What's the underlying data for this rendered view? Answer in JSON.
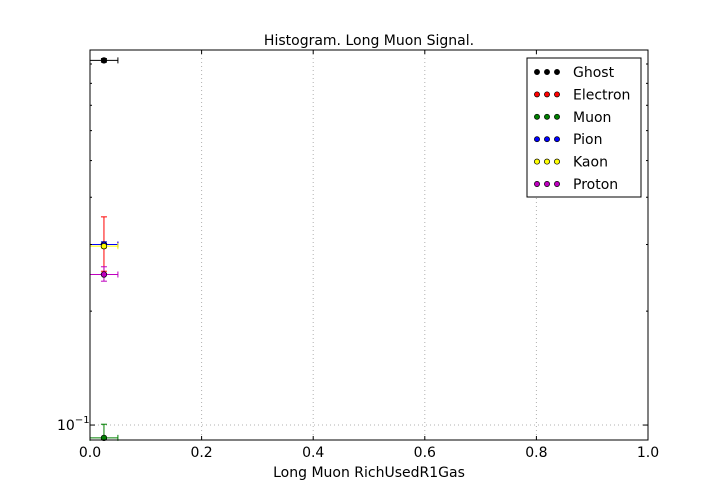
{
  "chart_data": {
    "type": "scatter",
    "title": "Histogram. Long Muon Signal.",
    "xlabel": "Long Muon RichUsedR1Gas",
    "ylabel": "",
    "xlim": [
      0.0,
      1.0
    ],
    "ylim": [
      0.0913,
      0.98
    ],
    "yscale": "log",
    "grid": true,
    "legend_position": "top-right",
    "x_ticks": [
      {
        "value": 0.0,
        "label": "0.0"
      },
      {
        "value": 0.2,
        "label": "0.2"
      },
      {
        "value": 0.4,
        "label": "0.4"
      },
      {
        "value": 0.6,
        "label": "0.6"
      },
      {
        "value": 0.8,
        "label": "0.8"
      },
      {
        "value": 1.0,
        "label": "1.0"
      }
    ],
    "y_ticks": [
      {
        "value": 0.1,
        "label_base": "10",
        "label_exp": "−1"
      }
    ],
    "series": [
      {
        "name": "Ghost",
        "color": "#000000",
        "x": [
          0.025
        ],
        "xerr": [
          0.025
        ],
        "y": [
          0.92
        ],
        "yerr_low": [
          0.01
        ],
        "yerr_high": [
          0.01
        ]
      },
      {
        "name": "Electron",
        "color": "#ff0000",
        "x": [
          0.025
        ],
        "xerr": [
          0.025
        ],
        "y": [
          0.3
        ],
        "yerr_low": [
          0.045
        ],
        "yerr_high": [
          0.055
        ]
      },
      {
        "name": "Muon",
        "color": "#008000",
        "x": [
          0.025
        ],
        "xerr": [
          0.025
        ],
        "y": [
          0.0925
        ],
        "yerr_low": [
          0.0005
        ],
        "yerr_high": [
          0.008
        ]
      },
      {
        "name": "Pion",
        "color": "#0000ff",
        "x": [
          0.025
        ],
        "xerr": [
          0.025
        ],
        "y": [
          0.3
        ],
        "yerr_low": [
          0.005
        ],
        "yerr_high": [
          0.005
        ]
      },
      {
        "name": "Kaon",
        "color": "#ffff00",
        "x": [
          0.025
        ],
        "xerr": [
          0.025
        ],
        "y": [
          0.297
        ],
        "yerr_low": [
          0.004
        ],
        "yerr_high": [
          0.004
        ]
      },
      {
        "name": "Proton",
        "color": "#bf00bf",
        "x": [
          0.025
        ],
        "xerr": [
          0.025
        ],
        "y": [
          0.25
        ],
        "yerr_low": [
          0.01
        ],
        "yerr_high": [
          0.012
        ]
      }
    ]
  }
}
